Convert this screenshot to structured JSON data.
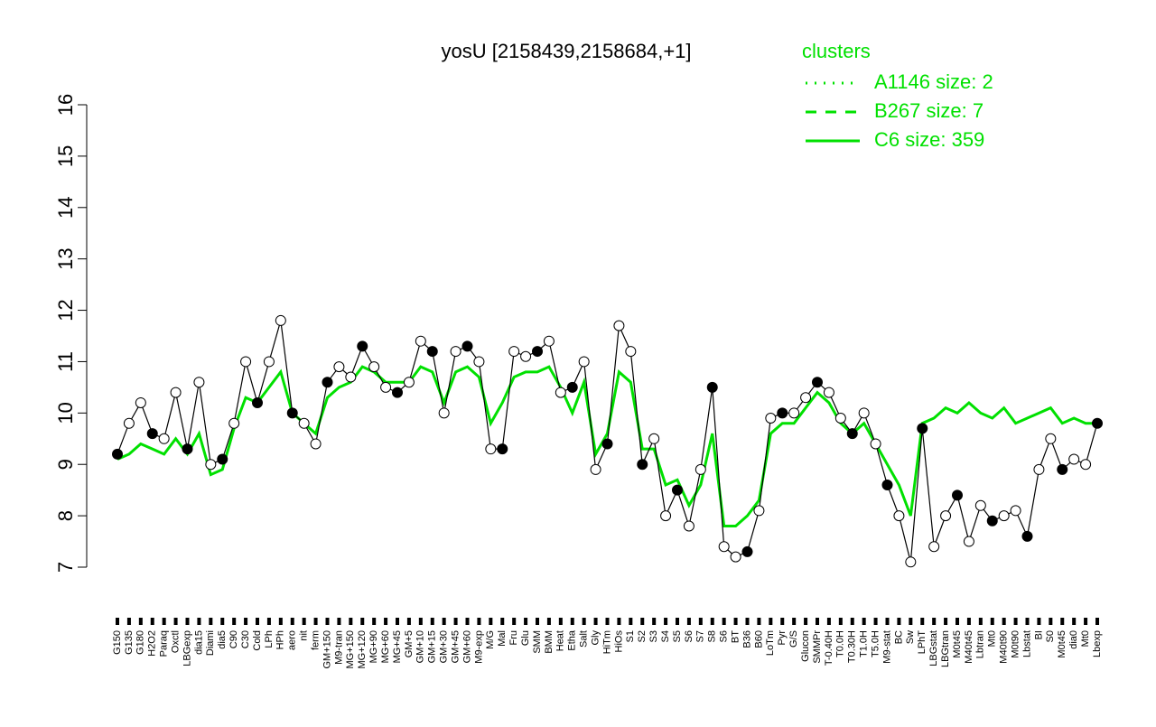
{
  "chart_data": {
    "type": "line",
    "title": "yosU [2158439,2158684,+1]",
    "legend_title": "clusters",
    "legend_color": "#00e000",
    "legend": [
      {
        "name": "A1146 size: 2",
        "dash": "2 8"
      },
      {
        "name": "B267 size: 7",
        "dash": "12 10"
      },
      {
        "name": "C6 size: 359",
        "dash": "none"
      }
    ],
    "categories": [
      "G150",
      "G135",
      "G180",
      "H2O2",
      "Paraq",
      "Oxctl",
      "LBGexp",
      "dia15",
      "Diami",
      "dia5",
      "C90",
      "C30",
      "Cold",
      "LPh",
      "HPh",
      "aero",
      "nit",
      "ferm",
      "GM+150",
      "M9-tran",
      "MG+150",
      "MG+120",
      "MG+90",
      "MG+60",
      "MG+45",
      "GM+5",
      "GM+10",
      "GM+15",
      "GM+30",
      "GM+45",
      "GM+60",
      "M9-exp",
      "M/G",
      "Mal",
      "Fru",
      "Glu",
      "SMM",
      "BMM",
      "Heat",
      "Etha",
      "Salt",
      "Gly",
      "HiTm",
      "HiOs",
      "S1",
      "S2",
      "S3",
      "S4",
      "S5",
      "S6",
      "S7",
      "S8",
      "S6",
      "BT",
      "B36",
      "B60",
      "LoTm",
      "Pyr",
      "G/S",
      "Glucon",
      "SMMPr",
      "T-0.40H",
      "T0.0H",
      "T0.30H",
      "T1.0H",
      "T5.0H",
      "M9-stat",
      "BC",
      "Sw",
      "LPhT",
      "LBGstat",
      "LBGtran",
      "M0t45",
      "M40t45",
      "Lbtran",
      "Mt0",
      "M40t90",
      "M0t90",
      "Lbstat",
      "BI",
      "S0",
      "M0t45",
      "dia0",
      "Mt0",
      "Lbexp"
    ],
    "series": [
      {
        "color": "#000000",
        "values": [
          9.2,
          9.8,
          10.2,
          9.6,
          9.5,
          10.4,
          9.3,
          10.6,
          9.0,
          9.1,
          9.8,
          11.0,
          10.2,
          11.0,
          11.8,
          10.0,
          9.8,
          9.4,
          10.6,
          10.9,
          10.7,
          11.3,
          10.9,
          10.5,
          10.4,
          10.6,
          11.4,
          11.2,
          10.0,
          11.2,
          11.3,
          11.0,
          9.3,
          9.3,
          11.2,
          11.1,
          11.2,
          11.4,
          10.4,
          10.5,
          11.0,
          8.9,
          9.4,
          11.7,
          11.2,
          9.0,
          9.5,
          8.0,
          8.5,
          7.8,
          8.9,
          10.5,
          7.4,
          7.2,
          7.3,
          8.1,
          9.9,
          10.0,
          10.0,
          10.3,
          10.6,
          10.4,
          9.9,
          9.6,
          10.0,
          9.4,
          8.6,
          8.0,
          7.1,
          9.7,
          7.4,
          8.0,
          8.4,
          7.5,
          8.2,
          7.9,
          8.0,
          8.1,
          7.6,
          8.9,
          9.5,
          8.9,
          9.1,
          9.0,
          9.8
        ]
      },
      {
        "name": "C6 size: 359",
        "color": "#00e000",
        "values": [
          9.1,
          9.2,
          9.4,
          9.3,
          9.2,
          9.5,
          9.2,
          9.6,
          8.8,
          8.9,
          9.7,
          10.3,
          10.2,
          10.5,
          10.8,
          10.0,
          9.8,
          9.6,
          10.3,
          10.5,
          10.6,
          10.9,
          10.8,
          10.6,
          10.6,
          10.6,
          10.9,
          10.8,
          10.2,
          10.8,
          10.9,
          10.7,
          9.8,
          10.2,
          10.7,
          10.8,
          10.8,
          10.9,
          10.5,
          10.0,
          10.6,
          9.2,
          9.6,
          10.8,
          10.6,
          9.3,
          9.3,
          8.6,
          8.7,
          8.2,
          8.6,
          9.6,
          7.8,
          7.8,
          8.0,
          8.3,
          9.6,
          9.8,
          9.8,
          10.1,
          10.4,
          10.2,
          9.8,
          9.6,
          9.8,
          9.4,
          9.0,
          8.6,
          8.0,
          9.8,
          9.9,
          10.1,
          10.0,
          10.2,
          10.0,
          9.9,
          10.1,
          9.8,
          9.9,
          10.0,
          10.1,
          9.8,
          9.9,
          9.8,
          9.8
        ]
      }
    ],
    "ylim": [
      7,
      16
    ],
    "yticks": [
      7,
      8,
      9,
      10,
      11,
      12,
      13,
      14,
      15,
      16
    ]
  }
}
